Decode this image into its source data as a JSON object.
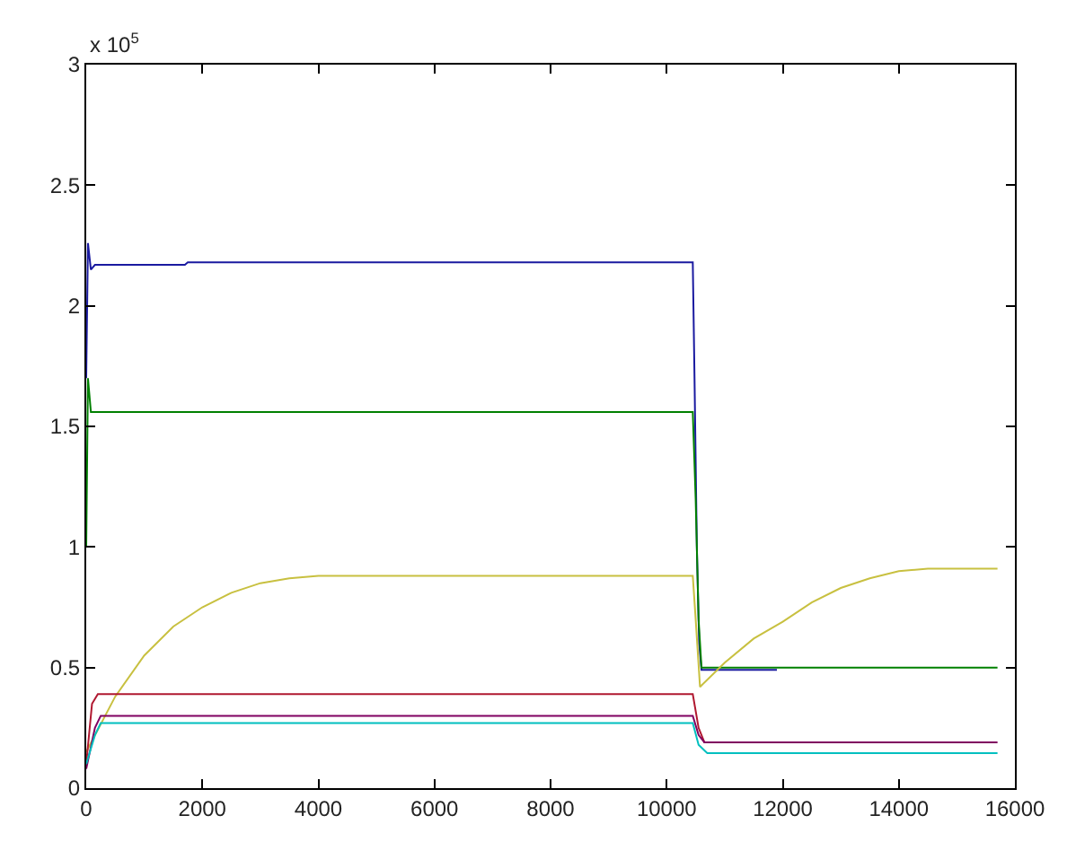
{
  "chart_data": {
    "type": "line",
    "xlim": [
      0,
      16000
    ],
    "xticks": [
      0,
      2000,
      4000,
      6000,
      8000,
      10000,
      12000,
      14000,
      16000
    ],
    "ylim": [
      0,
      3
    ],
    "yticks": [
      0,
      0.5,
      1,
      1.5,
      2,
      2.5,
      3
    ],
    "grid": false,
    "marker": "none",
    "line_style": "solid",
    "annotations": [
      "x 10$^{5}$"
    ],
    "series": [
      {
        "color": "#1a1aa0",
        "x": [
          0,
          30,
          80,
          150,
          1700,
          1750,
          10450,
          10480,
          10520,
          10560,
          10600,
          11900
        ],
        "values": [
          1.7,
          2.26,
          2.15,
          2.17,
          2.17,
          2.18,
          2.18,
          1.7,
          1.0,
          0.6,
          0.49,
          0.49
        ]
      },
      {
        "color": "#008000",
        "x": [
          0,
          30,
          80,
          10450,
          10500,
          10550,
          10600,
          15700
        ],
        "values": [
          1.0,
          1.7,
          1.56,
          1.56,
          1.2,
          0.7,
          0.5,
          0.5
        ]
      },
      {
        "color": "#c8c040",
        "x": [
          0,
          500,
          1000,
          1500,
          2000,
          2500,
          3000,
          3500,
          4000,
          10450,
          10500,
          10575,
          11000,
          11500,
          12000,
          12500,
          13000,
          13500,
          14000,
          14500,
          15700
        ],
        "values": [
          0.15,
          0.38,
          0.55,
          0.67,
          0.75,
          0.81,
          0.85,
          0.87,
          0.88,
          0.88,
          0.7,
          0.42,
          0.52,
          0.62,
          0.69,
          0.77,
          0.83,
          0.87,
          0.9,
          0.91,
          0.91
        ]
      },
      {
        "color": "#b01830",
        "x": [
          0,
          100,
          200,
          10450,
          10550,
          10650,
          11600
        ],
        "values": [
          0.1,
          0.35,
          0.39,
          0.39,
          0.25,
          0.19,
          0.19
        ]
      },
      {
        "color": "#800060",
        "x": [
          0,
          150,
          250,
          10450,
          10550,
          10650,
          15700
        ],
        "values": [
          0.08,
          0.25,
          0.3,
          0.3,
          0.22,
          0.19,
          0.19
        ]
      },
      {
        "color": "#00bfbf",
        "x": [
          0,
          150,
          250,
          10450,
          10550,
          10700,
          15700
        ],
        "values": [
          0.1,
          0.22,
          0.27,
          0.27,
          0.18,
          0.145,
          0.145
        ]
      }
    ]
  }
}
